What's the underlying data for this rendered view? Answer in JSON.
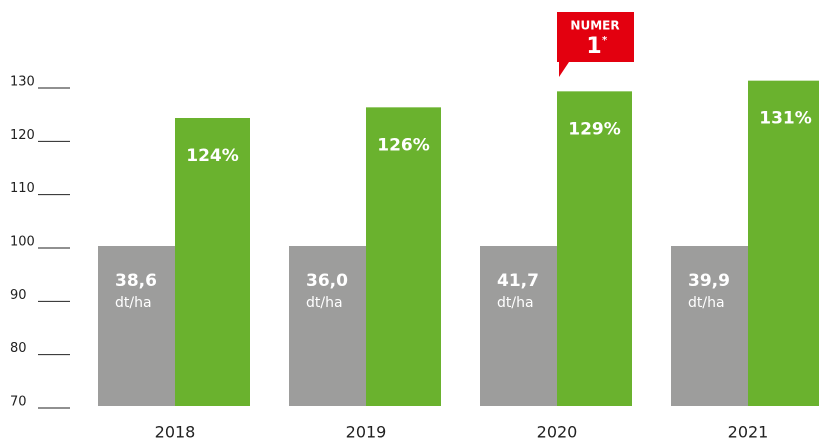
{
  "chart_data": {
    "type": "bar",
    "categories": [
      "2018",
      "2019",
      "2020",
      "2021"
    ],
    "series": [
      {
        "color": "#9d9d9c",
        "values": [
          100,
          100,
          100,
          100
        ]
      },
      {
        "color": "#6ab22e",
        "values": [
          124,
          126,
          129,
          131
        ],
        "value_labels": [
          "124%",
          "126%",
          "129%",
          "131%"
        ]
      }
    ],
    "bar_notes": [
      {
        "value": 38.6,
        "label": "38,6"
      },
      {
        "value": 36.0,
        "label": "36,0"
      },
      {
        "value": 41.7,
        "label": "41,7"
      },
      {
        "value": 39.9,
        "label": "39,9"
      }
    ],
    "note_unit": "dt/ha",
    "badge": {
      "category": 2,
      "text": "NUMER",
      "number": "1",
      "mark": "*",
      "color": "#e3000f"
    },
    "ylim": [
      70,
      130
    ],
    "yticks": [
      70,
      80,
      90,
      100,
      110,
      120,
      130
    ],
    "grid": false
  }
}
